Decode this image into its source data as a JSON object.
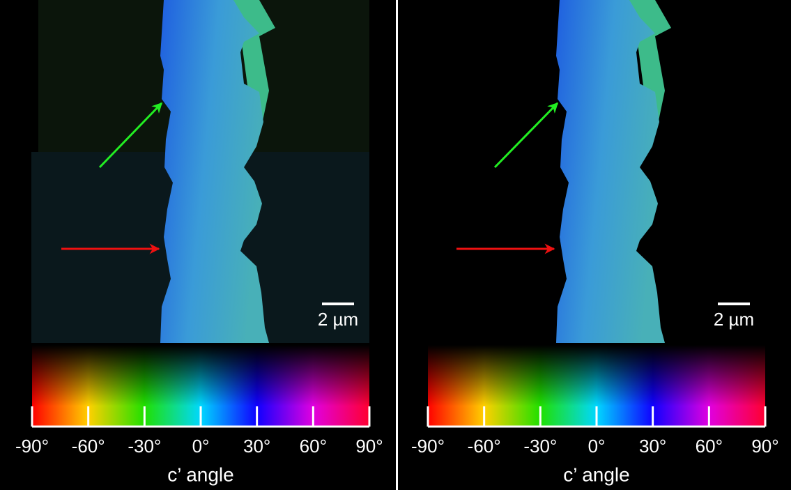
{
  "panels": [
    {
      "scale_bar": "2 µm",
      "colorbar": {
        "ticks": [
          "-90°",
          "-60°",
          "-30°",
          "0°",
          "30°",
          "60°",
          "90°"
        ],
        "label": "c’ angle"
      }
    },
    {
      "scale_bar": "2 µm",
      "colorbar": {
        "ticks": [
          "-90°",
          "-60°",
          "-30°",
          "0°",
          "30°",
          "60°",
          "90°"
        ],
        "label": "c’ angle"
      }
    }
  ]
}
